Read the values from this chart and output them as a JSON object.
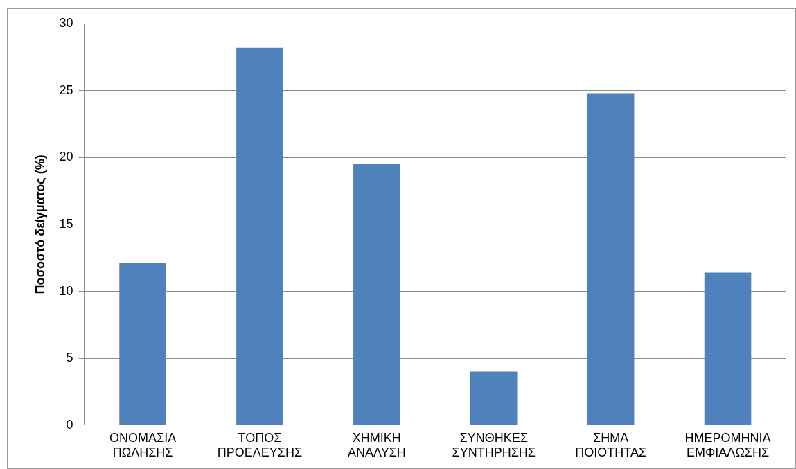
{
  "chart_data": {
    "type": "bar",
    "ylabel": "Ποσοστό δείγματος (%)",
    "categories": [
      "ΟΝΟΜΑΣΙΑ ΠΩΛΗΣΗΣ",
      "ΤΟΠΟΣ ΠΡΟΕΛΕΥΣΗΣ",
      "ΧΗΜΙΚΗ ΑΝΑΛΥΣΗ",
      "ΣΥΝΘΗΚΕΣ ΣΥΝΤΗΡΗΣΗΣ",
      "ΣΗΜΑ ΠΟΙΟΤΗΤΑΣ",
      "ΗΜΕΡΟΜΗΝΙΑ ΕΜΦΙΑΛΩΣΗΣ"
    ],
    "values": [
      12.1,
      28.2,
      19.5,
      4.0,
      24.8,
      11.4
    ],
    "color": "#4f81bd",
    "ylim": [
      0,
      30
    ],
    "yticks": [
      0,
      5,
      10,
      15,
      20,
      25,
      30
    ],
    "grid": "y"
  }
}
